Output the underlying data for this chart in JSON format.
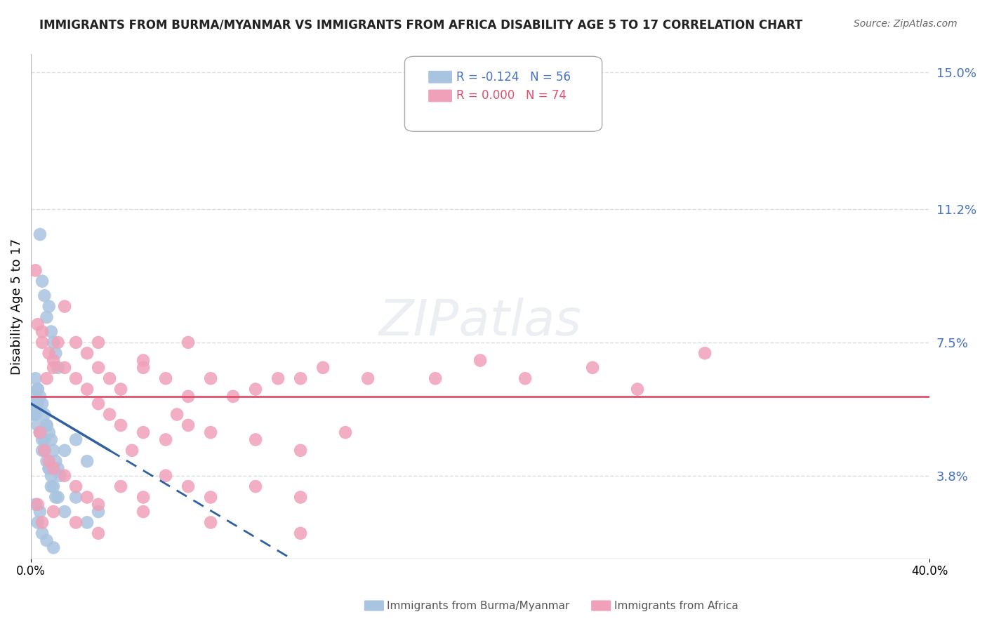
{
  "title": "IMMIGRANTS FROM BURMA/MYANMAR VS IMMIGRANTS FROM AFRICA DISABILITY AGE 5 TO 17 CORRELATION CHART",
  "source": "Source: ZipAtlas.com",
  "ylabel": "Disability Age 5 to 17",
  "right_yticks": [
    3.8,
    7.5,
    11.2,
    15.0
  ],
  "right_ytick_labels": [
    "3.8%",
    "7.5%",
    "11.2%",
    "15.0%"
  ],
  "xmin": 0.0,
  "xmax": 40.0,
  "ymin": 1.5,
  "ymax": 15.5,
  "legend_label_burma": "Immigrants from Burma/Myanmar",
  "legend_label_africa": "Immigrants from Africa",
  "burma_color": "#a8c4e0",
  "africa_color": "#f0a0b8",
  "trend_burma_color": "#3060a0",
  "trend_africa_color": "#e05070",
  "watermark": "ZIPatlas",
  "burma_scatter": [
    [
      0.3,
      5.8
    ],
    [
      0.4,
      10.5
    ],
    [
      0.5,
      9.2
    ],
    [
      0.6,
      8.8
    ],
    [
      0.8,
      8.5
    ],
    [
      0.7,
      8.2
    ],
    [
      0.9,
      7.8
    ],
    [
      1.0,
      7.5
    ],
    [
      1.1,
      7.2
    ],
    [
      1.2,
      6.8
    ],
    [
      0.2,
      6.5
    ],
    [
      0.3,
      6.2
    ],
    [
      0.4,
      6.0
    ],
    [
      0.5,
      5.8
    ],
    [
      0.6,
      5.5
    ],
    [
      0.7,
      5.2
    ],
    [
      0.8,
      5.0
    ],
    [
      0.9,
      4.8
    ],
    [
      1.0,
      4.5
    ],
    [
      1.1,
      4.2
    ],
    [
      1.2,
      4.0
    ],
    [
      1.3,
      3.8
    ],
    [
      0.2,
      5.5
    ],
    [
      0.3,
      5.2
    ],
    [
      0.4,
      5.0
    ],
    [
      0.5,
      4.8
    ],
    [
      0.6,
      4.5
    ],
    [
      0.7,
      4.2
    ],
    [
      0.8,
      4.0
    ],
    [
      0.9,
      3.8
    ],
    [
      1.0,
      3.5
    ],
    [
      1.1,
      3.2
    ],
    [
      1.5,
      4.5
    ],
    [
      2.0,
      4.8
    ],
    [
      2.5,
      4.2
    ],
    [
      0.1,
      5.5
    ],
    [
      0.1,
      5.8
    ],
    [
      0.2,
      6.0
    ],
    [
      0.3,
      6.2
    ],
    [
      0.4,
      5.0
    ],
    [
      0.5,
      4.5
    ],
    [
      0.6,
      4.8
    ],
    [
      0.7,
      5.2
    ],
    [
      0.8,
      4.0
    ],
    [
      0.9,
      3.5
    ],
    [
      1.2,
      3.2
    ],
    [
      1.5,
      2.8
    ],
    [
      2.0,
      3.2
    ],
    [
      2.5,
      2.5
    ],
    [
      3.0,
      2.8
    ],
    [
      0.2,
      3.0
    ],
    [
      0.3,
      2.5
    ],
    [
      0.5,
      2.2
    ],
    [
      0.7,
      2.0
    ],
    [
      1.0,
      1.8
    ],
    [
      0.4,
      2.8
    ]
  ],
  "africa_scatter": [
    [
      0.5,
      7.5
    ],
    [
      0.8,
      7.2
    ],
    [
      1.0,
      6.8
    ],
    [
      1.5,
      8.5
    ],
    [
      2.0,
      7.5
    ],
    [
      2.5,
      7.2
    ],
    [
      3.0,
      6.8
    ],
    [
      3.5,
      6.5
    ],
    [
      4.0,
      6.2
    ],
    [
      5.0,
      7.0
    ],
    [
      6.0,
      6.5
    ],
    [
      7.0,
      6.0
    ],
    [
      8.0,
      6.5
    ],
    [
      10.0,
      6.2
    ],
    [
      12.0,
      6.5
    ],
    [
      15.0,
      6.5
    ],
    [
      20.0,
      7.0
    ],
    [
      25.0,
      6.8
    ],
    [
      30.0,
      7.2
    ],
    [
      0.3,
      8.0
    ],
    [
      0.5,
      7.8
    ],
    [
      0.7,
      6.5
    ],
    [
      1.0,
      7.0
    ],
    [
      1.2,
      7.5
    ],
    [
      1.5,
      6.8
    ],
    [
      2.0,
      6.5
    ],
    [
      2.5,
      6.2
    ],
    [
      3.0,
      5.8
    ],
    [
      3.5,
      5.5
    ],
    [
      4.0,
      5.2
    ],
    [
      5.0,
      5.0
    ],
    [
      6.0,
      4.8
    ],
    [
      7.0,
      5.2
    ],
    [
      8.0,
      5.0
    ],
    [
      10.0,
      4.8
    ],
    [
      12.0,
      4.5
    ],
    [
      14.0,
      5.0
    ],
    [
      0.2,
      9.5
    ],
    [
      3.0,
      7.5
    ],
    [
      5.0,
      6.8
    ],
    [
      7.0,
      7.5
    ],
    [
      9.0,
      6.0
    ],
    [
      11.0,
      6.5
    ],
    [
      13.0,
      6.8
    ],
    [
      18.0,
      6.5
    ],
    [
      22.0,
      6.5
    ],
    [
      27.0,
      6.2
    ],
    [
      0.4,
      5.0
    ],
    [
      0.6,
      4.5
    ],
    [
      0.8,
      4.2
    ],
    [
      1.0,
      4.0
    ],
    [
      1.5,
      3.8
    ],
    [
      2.0,
      3.5
    ],
    [
      2.5,
      3.2
    ],
    [
      3.0,
      3.0
    ],
    [
      4.0,
      3.5
    ],
    [
      5.0,
      3.2
    ],
    [
      6.0,
      3.8
    ],
    [
      7.0,
      3.5
    ],
    [
      8.0,
      3.2
    ],
    [
      10.0,
      3.5
    ],
    [
      12.0,
      3.2
    ],
    [
      0.3,
      3.0
    ],
    [
      0.5,
      2.5
    ],
    [
      1.0,
      2.8
    ],
    [
      2.0,
      2.5
    ],
    [
      3.0,
      2.2
    ],
    [
      5.0,
      2.8
    ],
    [
      8.0,
      2.5
    ],
    [
      12.0,
      2.2
    ],
    [
      4.5,
      4.5
    ],
    [
      6.5,
      5.5
    ]
  ],
  "grid_color": "#dddddd",
  "background_color": "#ffffff"
}
